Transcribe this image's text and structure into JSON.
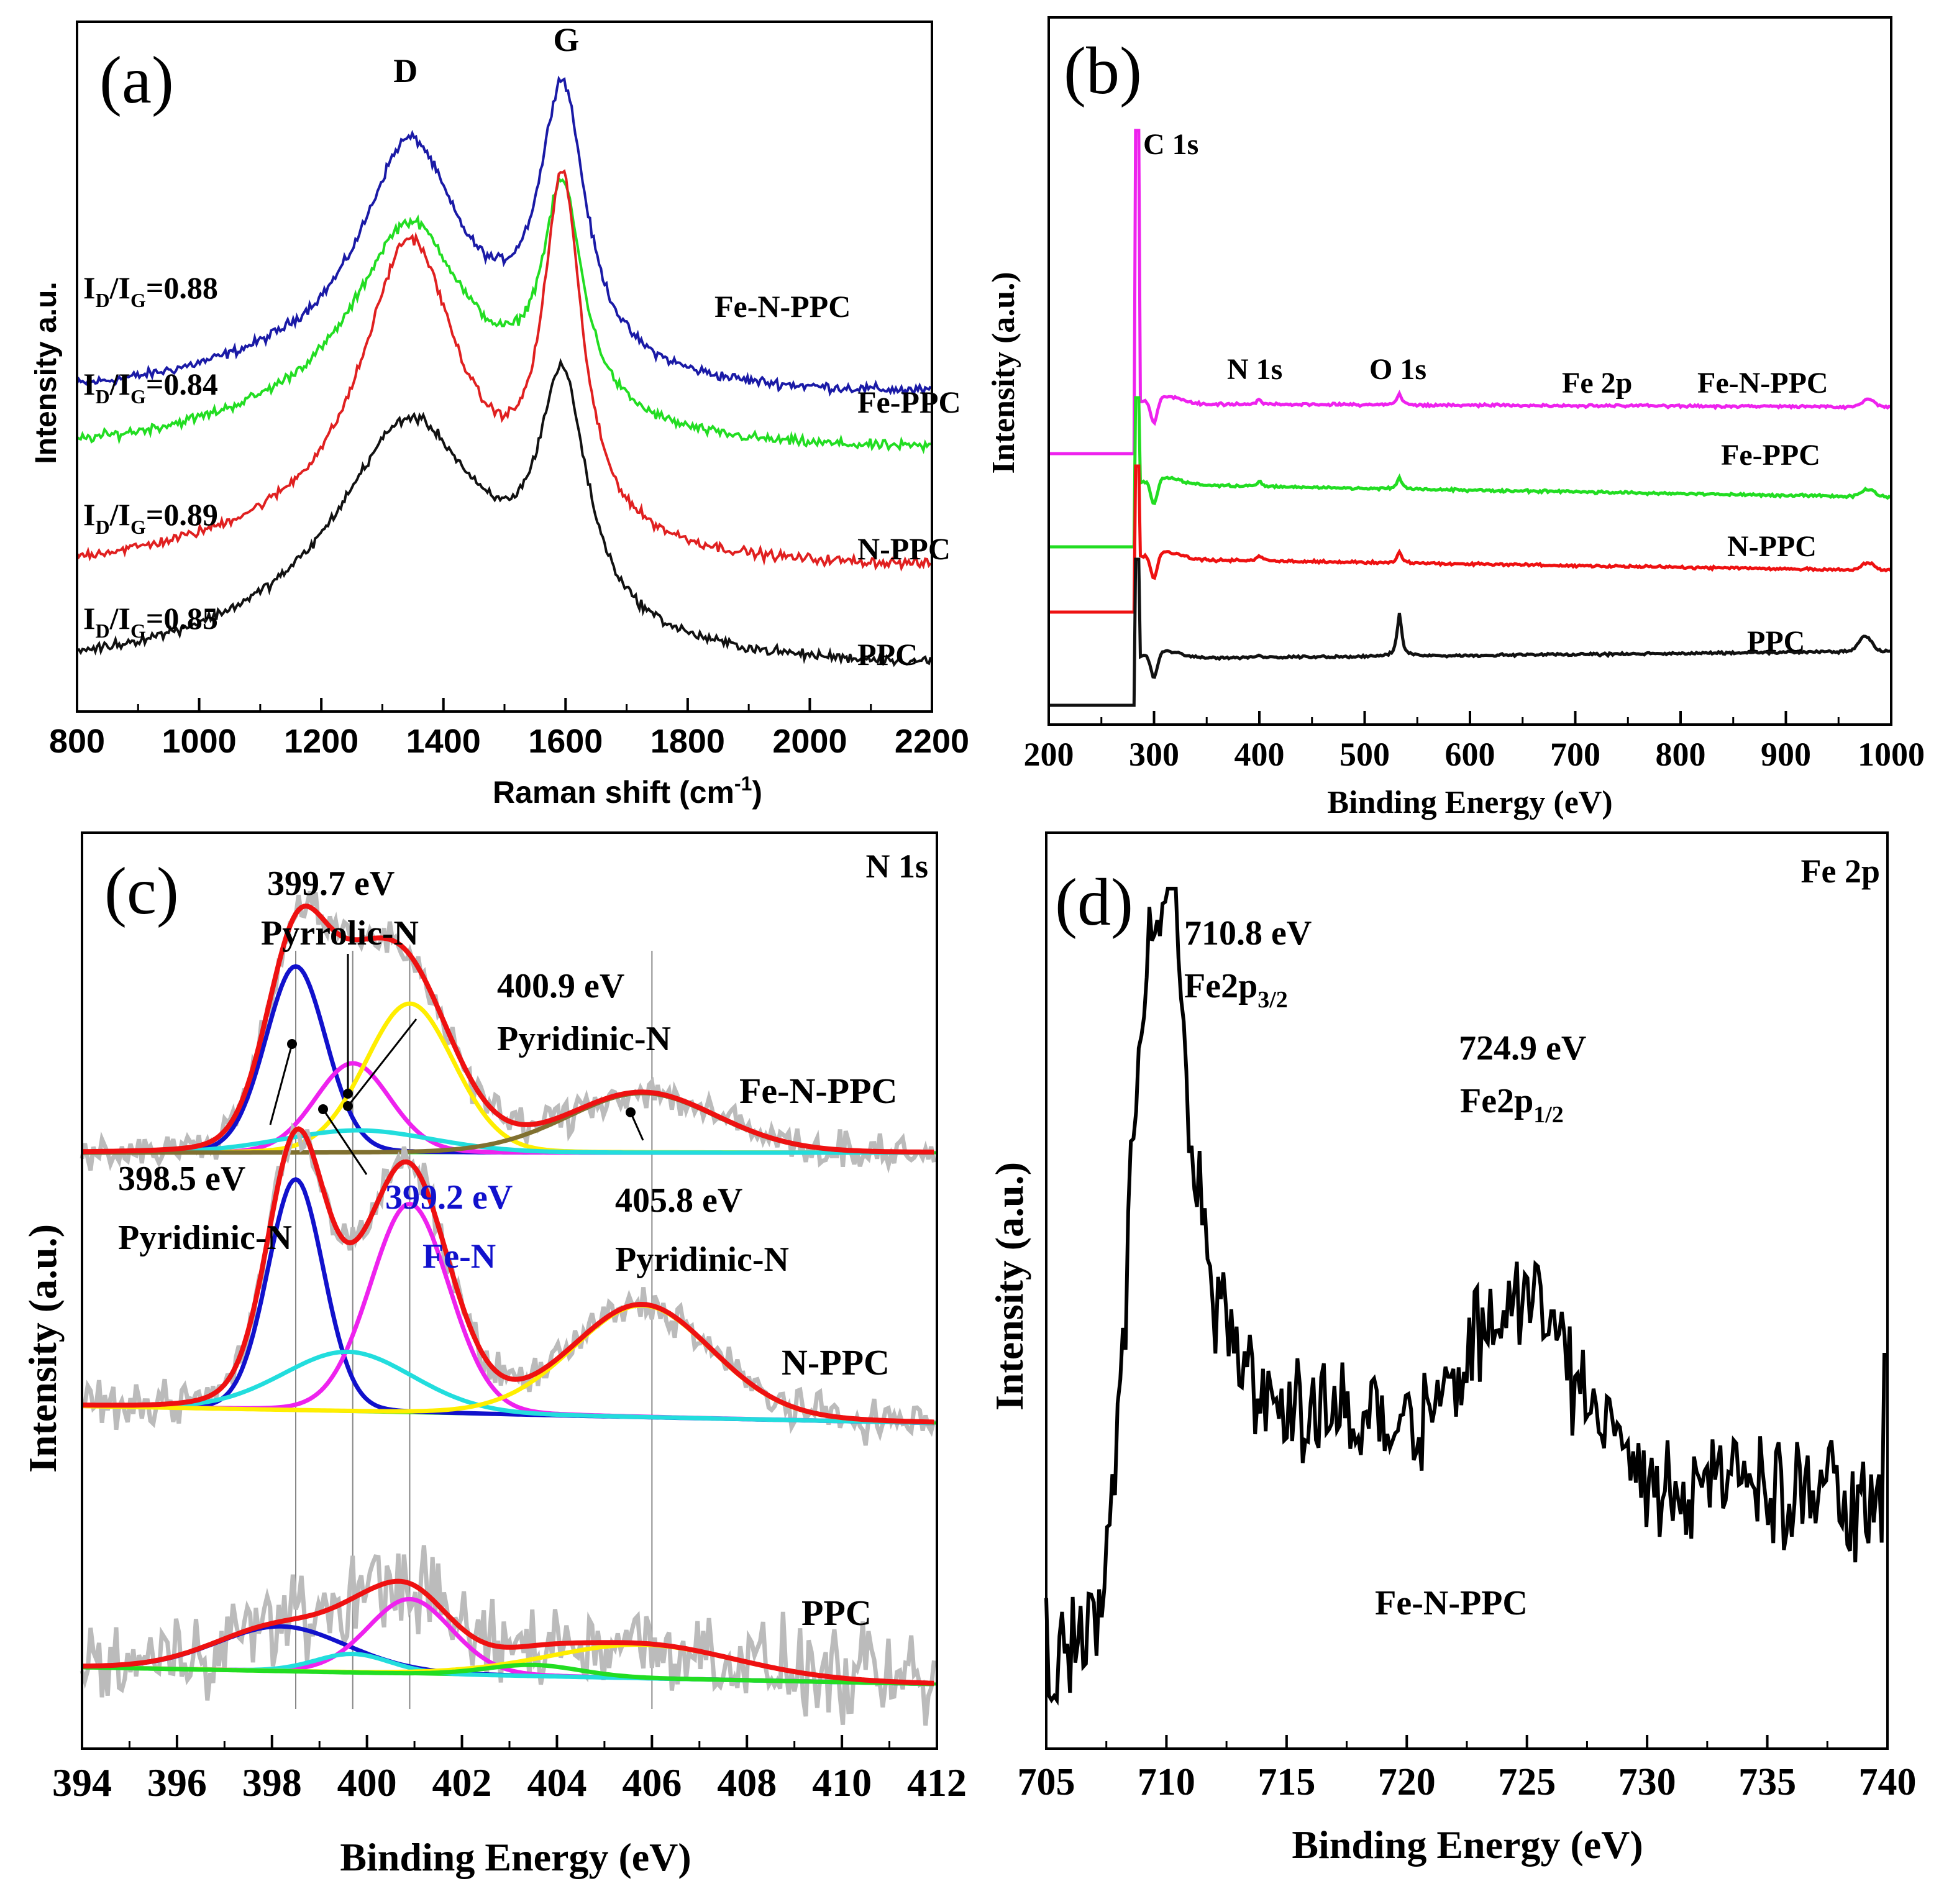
{
  "chart_data": [
    {
      "panel": "(a)",
      "type": "line",
      "xlabel": "Raman shift (cm",
      "xlabel_sup": "-1",
      "xlabel_end": ")",
      "ylabel": "Intensity a.u.",
      "xlim": [
        800,
        2200
      ],
      "xticks": [
        800,
        1000,
        1200,
        1400,
        1600,
        1800,
        2000,
        2200
      ],
      "peak_labels": [
        {
          "text": "D",
          "x": 1340
        },
        {
          "text": "G",
          "x": 1595
        }
      ],
      "series": [
        {
          "name": "Fe-N-PPC",
          "color": "#1a1aa6",
          "baseline": 0.46,
          "d_amp": 0.34,
          "g_amp": 0.44,
          "g_width": 45,
          "d_width": 95,
          "ratio_sub": "D",
          "ratio_sub2": "G",
          "ratio": "I/I=0.88",
          "ratio_prefix": "I",
          "ratio_value": "=0.88"
        },
        {
          "name": "Fe-PPC",
          "color": "#22dd22",
          "baseline": 0.37,
          "d_amp": 0.3,
          "g_amp": 0.36,
          "g_width": 40,
          "d_width": 110,
          "ratio_prefix": "I",
          "ratio_sub": "D",
          "ratio_sub2": "G",
          "ratio_value": "=0.84"
        },
        {
          "name": "N-PPC",
          "color": "#e02020",
          "baseline": 0.18,
          "d_amp": 0.46,
          "g_amp": 0.56,
          "g_width": 38,
          "d_width": 95,
          "ratio_prefix": "I",
          "ratio_sub": "D",
          "ratio_sub2": "G",
          "ratio_value": "=0.89"
        },
        {
          "name": "PPC",
          "color": "#111111",
          "baseline": 0.02,
          "d_amp": 0.33,
          "g_amp": 0.38,
          "g_width": 48,
          "d_width": 140,
          "ratio_prefix": "I",
          "ratio_sub": "D",
          "ratio_sub2": "G",
          "ratio_value": "=0.85"
        }
      ]
    },
    {
      "panel": "(b)",
      "type": "line",
      "xlabel": "Binding Energy (eV)",
      "ylabel": "Intensity (a.u.)",
      "xlim": [
        200,
        1000
      ],
      "xticks": [
        200,
        300,
        400,
        500,
        600,
        700,
        800,
        900,
        1000
      ],
      "peak_labels": [
        {
          "text": "C 1s",
          "x": 284.8
        },
        {
          "text": "N 1s",
          "x": 400
        },
        {
          "text": "O 1s",
          "x": 532
        },
        {
          "text": "Fe 2p",
          "x": 711
        }
      ],
      "series": [
        {
          "name": "Fe-N-PPC",
          "color": "#ee22ee"
        },
        {
          "name": "Fe-PPC",
          "color": "#22dd22"
        },
        {
          "name": "N-PPC",
          "color": "#ee1111"
        },
        {
          "name": "PPC",
          "color": "#111111"
        }
      ]
    },
    {
      "panel": "(c)",
      "type": "line",
      "title": "N 1s",
      "xlabel": "Binding Energy (eV)",
      "ylabel": "Intensity (a.u.)",
      "xlim": [
        394,
        412
      ],
      "xticks": [
        394,
        396,
        398,
        400,
        402,
        404,
        406,
        408,
        410,
        412
      ],
      "reference_lines": [
        398.5,
        399.7,
        400.9,
        406.0
      ],
      "annotations": [
        {
          "energy": "399.7 eV",
          "species": "Pyrrolic-N"
        },
        {
          "energy": "400.9 eV",
          "species": "Pyridinic-N"
        },
        {
          "energy": "398.5 eV",
          "species": "Pyridinic-N"
        },
        {
          "energy": "399.2 eV",
          "species": "Fe-N"
        },
        {
          "energy": "405.8 eV",
          "species": "Pyridinic-N"
        }
      ],
      "series": [
        {
          "name": "Fe-N-PPC",
          "components": [
            {
              "center": 398.5,
              "amp": 0.5,
              "width": 0.65,
              "color": "#1111cc"
            },
            {
              "center": 399.7,
              "amp": 0.24,
              "width": 0.8,
              "color": "#ee22ee"
            },
            {
              "center": 400.9,
              "amp": 0.4,
              "width": 0.95,
              "color": "#ffee00"
            },
            {
              "center": 399.8,
              "amp": 0.06,
              "width": 1.6,
              "color": "#22dddd"
            },
            {
              "center": 405.8,
              "amp": 0.16,
              "width": 1.6,
              "color": "#807030"
            }
          ]
        },
        {
          "name": "N-PPC",
          "components": [
            {
              "center": 398.5,
              "amp": 0.62,
              "width": 0.6,
              "color": "#1111cc"
            },
            {
              "center": 400.9,
              "amp": 0.56,
              "width": 0.85,
              "color": "#ee22ee"
            },
            {
              "center": 399.6,
              "amp": 0.16,
              "width": 1.4,
              "color": "#22dddd"
            },
            {
              "center": 405.8,
              "amp": 0.3,
              "width": 1.5,
              "color": "#ffee00"
            }
          ]
        },
        {
          "name": "PPC",
          "components": [
            {
              "center": 398.2,
              "amp": 0.12,
              "width": 1.4,
              "color": "#1111cc"
            },
            {
              "center": 400.9,
              "amp": 0.2,
              "width": 0.9,
              "color": "#ee22ee"
            },
            {
              "center": 399.7,
              "amp": 0.05,
              "width": 0.8,
              "color": "#22dddd"
            },
            {
              "center": 405.8,
              "amp": 0.09,
              "width": 2.0,
              "color": "#ffee00"
            },
            {
              "center": 403.5,
              "amp": 0.03,
              "width": 1.0,
              "color": "#22dd22"
            }
          ]
        }
      ]
    },
    {
      "panel": "(d)",
      "type": "line",
      "title": "Fe 2p",
      "sample": "Fe-N-PPC",
      "xlabel": "Binding Energy (eV)",
      "ylabel": "Intensity (a.u.)",
      "xlim": [
        705,
        740
      ],
      "xticks": [
        705,
        710,
        715,
        720,
        725,
        730,
        735,
        740
      ],
      "annotations": [
        {
          "energy": "710.8 eV",
          "label_main": "Fe2p",
          "label_sub": "3/2"
        },
        {
          "energy": "724.9 eV",
          "label_main": "Fe2p",
          "label_sub": "1/2"
        }
      ],
      "series": [
        {
          "name": "Fe-N-PPC",
          "color": "#000000"
        }
      ]
    }
  ]
}
